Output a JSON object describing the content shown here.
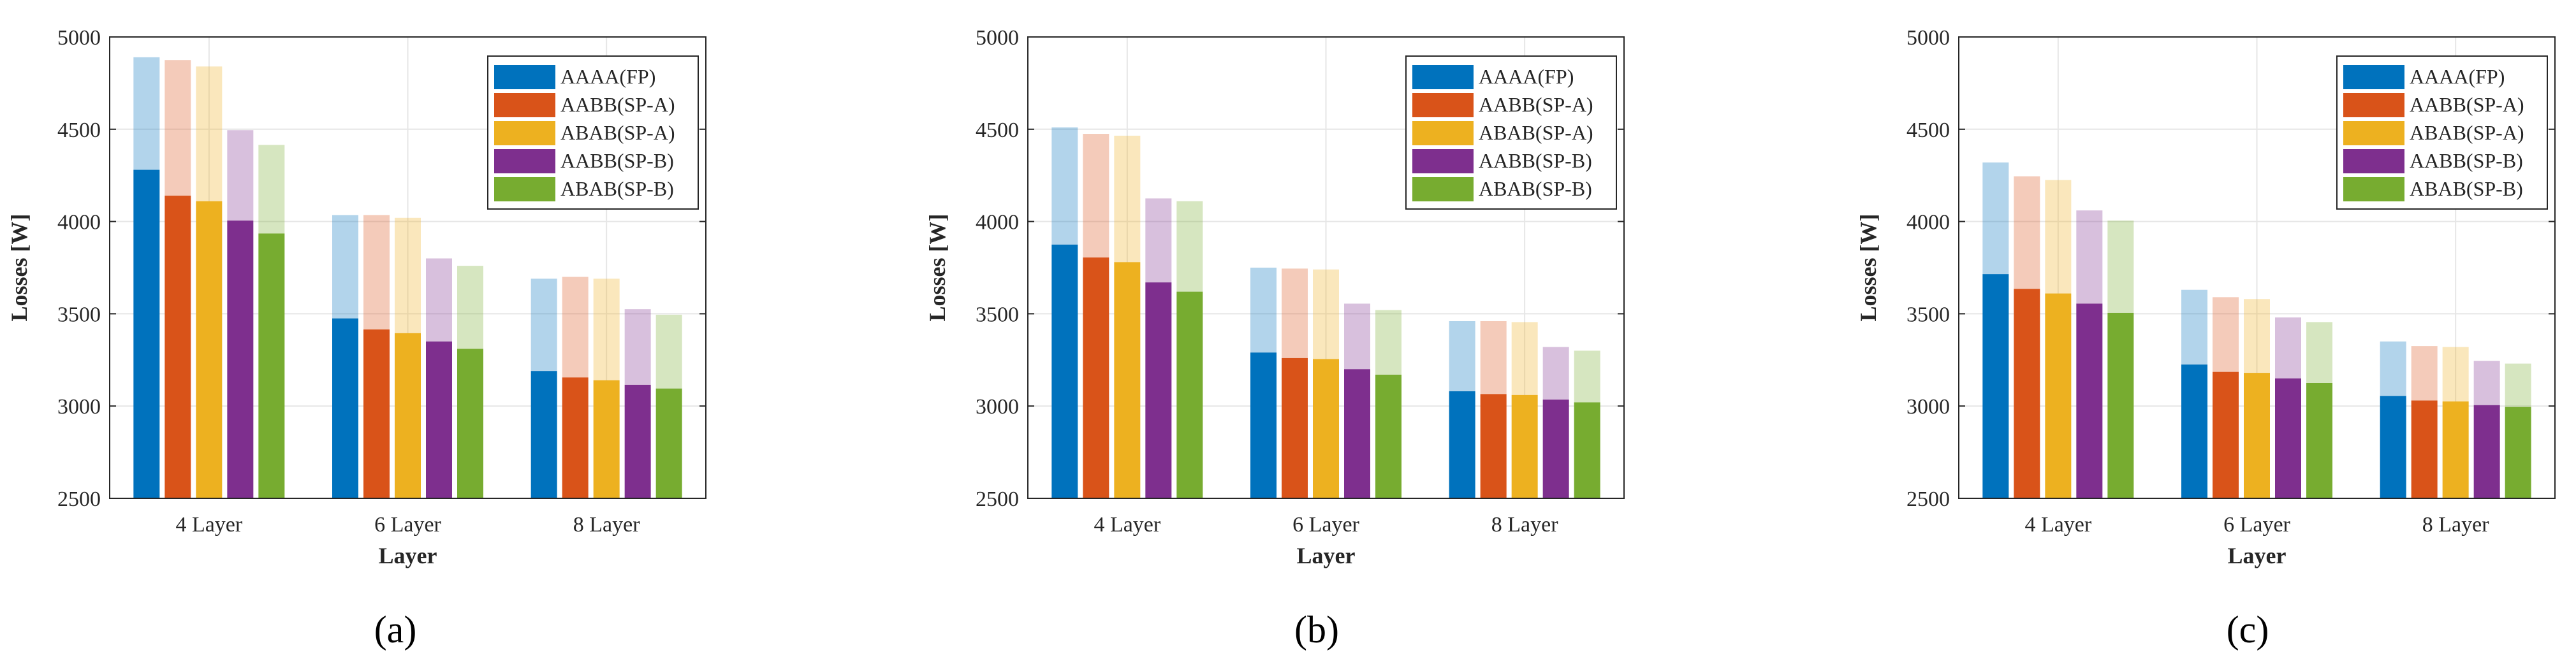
{
  "chart_data": [
    {
      "type": "bar",
      "caption": "(a)",
      "xlabel": "Layer",
      "ylabel": "Losses [W]",
      "ylim": [
        2500,
        5000
      ],
      "yticks": [
        2500,
        3000,
        3500,
        4000,
        4500,
        5000
      ],
      "grid": true,
      "legend_position": "top-right",
      "categories": [
        "4 Layer",
        "6 Layer",
        "8 Layer"
      ],
      "series": [
        {
          "name": "AAAA(FP)",
          "values": [
            4280,
            3475,
            3190
          ],
          "upper_values": [
            4890,
            4035,
            3690
          ]
        },
        {
          "name": "AABB(SP-A)",
          "values": [
            4140,
            3415,
            3155
          ],
          "upper_values": [
            4875,
            4035,
            3700
          ]
        },
        {
          "name": "ABAB(SP-A)",
          "values": [
            4110,
            3395,
            3140
          ],
          "upper_values": [
            4840,
            4020,
            3690
          ]
        },
        {
          "name": "AABB(SP-B)",
          "values": [
            4005,
            3350,
            3115
          ],
          "upper_values": [
            4495,
            3800,
            3525
          ]
        },
        {
          "name": "ABAB(SP-B)",
          "values": [
            3935,
            3310,
            3095
          ],
          "upper_values": [
            4415,
            3760,
            3495
          ]
        }
      ]
    },
    {
      "type": "bar",
      "caption": "(b)",
      "xlabel": "Layer",
      "ylabel": "Losses [W]",
      "ylim": [
        2500,
        5000
      ],
      "yticks": [
        2500,
        3000,
        3500,
        4000,
        4500,
        5000
      ],
      "grid": true,
      "legend_position": "top-right",
      "categories": [
        "4 Layer",
        "6 Layer",
        "8 Layer"
      ],
      "series": [
        {
          "name": "AAAA(FP)",
          "values": [
            3875,
            3290,
            3080
          ],
          "upper_values": [
            4510,
            3750,
            3460
          ]
        },
        {
          "name": "AABB(SP-A)",
          "values": [
            3805,
            3260,
            3065
          ],
          "upper_values": [
            4475,
            3745,
            3460
          ]
        },
        {
          "name": "ABAB(SP-A)",
          "values": [
            3780,
            3255,
            3060
          ],
          "upper_values": [
            4465,
            3740,
            3455
          ]
        },
        {
          "name": "AABB(SP-B)",
          "values": [
            3670,
            3200,
            3035
          ],
          "upper_values": [
            4125,
            3555,
            3320
          ]
        },
        {
          "name": "ABAB(SP-B)",
          "values": [
            3620,
            3170,
            3020
          ],
          "upper_values": [
            4110,
            3520,
            3300
          ]
        }
      ]
    },
    {
      "type": "bar",
      "caption": "(c)",
      "xlabel": "Layer",
      "ylabel": "Losses [W]",
      "ylim": [
        2500,
        5000
      ],
      "yticks": [
        2500,
        3000,
        3500,
        4000,
        4500,
        5000
      ],
      "grid": true,
      "legend_position": "top-right",
      "categories": [
        "4 Layer",
        "6 Layer",
        "8 Layer"
      ],
      "series": [
        {
          "name": "AAAA(FP)",
          "values": [
            3715,
            3225,
            3055
          ],
          "upper_values": [
            4320,
            3630,
            3350
          ]
        },
        {
          "name": "AABB(SP-A)",
          "values": [
            3635,
            3185,
            3030
          ],
          "upper_values": [
            4245,
            3590,
            3325
          ]
        },
        {
          "name": "ABAB(SP-A)",
          "values": [
            3610,
            3180,
            3025
          ],
          "upper_values": [
            4225,
            3580,
            3320
          ]
        },
        {
          "name": "AABB(SP-B)",
          "values": [
            3555,
            3150,
            3005
          ],
          "upper_values": [
            4060,
            3480,
            3245
          ]
        },
        {
          "name": "ABAB(SP-B)",
          "values": [
            3505,
            3125,
            2995
          ],
          "upper_values": [
            4005,
            3455,
            3230
          ]
        }
      ]
    }
  ],
  "colors": {
    "series": [
      "#0072BD",
      "#D95319",
      "#EDB120",
      "#7E2F8E",
      "#77AC30"
    ],
    "axis": "#262626",
    "grid": "#e6e6e6"
  }
}
